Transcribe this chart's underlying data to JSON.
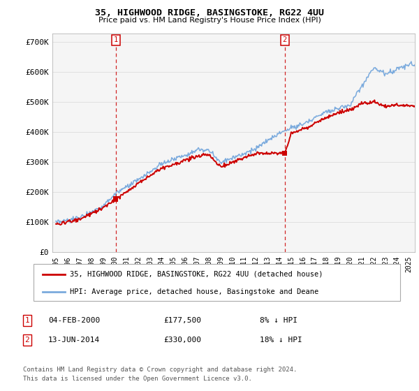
{
  "title": "35, HIGHWOOD RIDGE, BASINGSTOKE, RG22 4UU",
  "subtitle": "Price paid vs. HM Land Registry's House Price Index (HPI)",
  "legend_line1": "35, HIGHWOOD RIDGE, BASINGSTOKE, RG22 4UU (detached house)",
  "legend_line2": "HPI: Average price, detached house, Basingstoke and Deane",
  "table_rows": [
    {
      "num": "1",
      "date": "04-FEB-2000",
      "price": "£177,500",
      "hpi": "8% ↓ HPI"
    },
    {
      "num": "2",
      "date": "13-JUN-2014",
      "price": "£330,000",
      "hpi": "18% ↓ HPI"
    }
  ],
  "footnote": "Contains HM Land Registry data © Crown copyright and database right 2024.\nThis data is licensed under the Open Government Licence v3.0.",
  "marker1_x": 2000.09,
  "marker1_y": 177500,
  "marker2_x": 2014.45,
  "marker2_y": 330000,
  "vline1_x": 2000.09,
  "vline2_x": 2014.45,
  "red_line_color": "#cc0000",
  "blue_line_color": "#7aaadd",
  "vline_color": "#cc0000",
  "background_color": "#ffffff",
  "chart_bg_color": "#f5f5f5",
  "grid_color": "#dddddd",
  "ylim": [
    0,
    730000
  ],
  "xlim_start": 1994.7,
  "xlim_end": 2025.5,
  "yticks": [
    0,
    100000,
    200000,
    300000,
    400000,
    500000,
    600000,
    700000
  ],
  "ytick_labels": [
    "£0",
    "£100K",
    "£200K",
    "£300K",
    "£400K",
    "£500K",
    "£600K",
    "£700K"
  ],
  "xticks": [
    1995,
    1996,
    1997,
    1998,
    1999,
    2000,
    2001,
    2002,
    2003,
    2004,
    2005,
    2006,
    2007,
    2008,
    2009,
    2010,
    2011,
    2012,
    2013,
    2014,
    2015,
    2016,
    2017,
    2018,
    2019,
    2020,
    2021,
    2022,
    2023,
    2024,
    2025
  ]
}
